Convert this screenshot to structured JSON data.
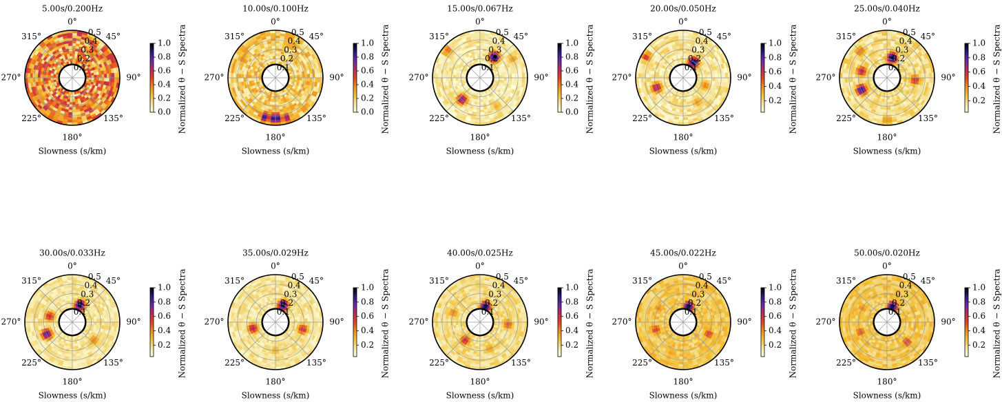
{
  "figure": {
    "xlabel": "Slowness (s/km)",
    "colorbar_label": "Normalized θ − S Spectra"
  },
  "chart_data": [
    {
      "type": "heatmap",
      "title": "5.00s/0.200Hz",
      "cbar_ticks": [
        "0.0",
        "0.2",
        "0.4",
        "0.6",
        "0.8",
        "1.0"
      ],
      "blobs": [
        {
          "az": 60,
          "s": 0.45,
          "v": 0.6
        },
        {
          "az": 330,
          "s": 0.4,
          "v": 0.45
        },
        {
          "az": 280,
          "s": 0.3,
          "v": 0.5
        },
        {
          "az": 150,
          "s": 0.35,
          "v": 0.45
        },
        {
          "az": 200,
          "s": 0.45,
          "v": 0.4
        }
      ],
      "bg": 0.35,
      "noise": 0.25
    },
    {
      "type": "heatmap",
      "title": "10.00s/0.100Hz",
      "cbar_ticks": [
        "0.0",
        "0.2",
        "0.4",
        "0.6",
        "0.8",
        "1.0"
      ],
      "blobs": [
        {
          "az": 180,
          "s": 0.43,
          "v": 1.0
        },
        {
          "az": 195,
          "s": 0.43,
          "v": 0.85
        },
        {
          "az": 165,
          "s": 0.44,
          "v": 0.7
        },
        {
          "az": 30,
          "s": 0.4,
          "v": 0.35
        },
        {
          "az": 300,
          "s": 0.4,
          "v": 0.4
        },
        {
          "az": 100,
          "s": 0.35,
          "v": 0.35
        }
      ],
      "bg": 0.2,
      "noise": 0.15
    },
    {
      "type": "heatmap",
      "title": "15.00s/0.067Hz",
      "cbar_ticks": [
        "0.0",
        "0.2",
        "0.4",
        "0.6",
        "0.8",
        "1.0"
      ],
      "blobs": [
        {
          "az": 35,
          "s": 0.27,
          "v": 1.0
        },
        {
          "az": 220,
          "s": 0.3,
          "v": 0.75
        },
        {
          "az": 310,
          "s": 0.45,
          "v": 0.45
        },
        {
          "az": 60,
          "s": 0.4,
          "v": 0.35
        },
        {
          "az": 150,
          "s": 0.35,
          "v": 0.3
        }
      ],
      "bg": 0.1,
      "noise": 0.1
    },
    {
      "type": "heatmap",
      "title": "20.00s/0.050Hz",
      "cbar_ticks": [
        "0.2",
        "0.4",
        "0.6",
        "0.8",
        "1.0"
      ],
      "blobs": [
        {
          "az": 35,
          "s": 0.2,
          "v": 1.0
        },
        {
          "az": 250,
          "s": 0.3,
          "v": 0.7
        },
        {
          "az": 300,
          "s": 0.45,
          "v": 0.55
        },
        {
          "az": 110,
          "s": 0.25,
          "v": 0.4
        },
        {
          "az": 150,
          "s": 0.3,
          "v": 0.35
        }
      ],
      "bg": 0.12,
      "noise": 0.1
    },
    {
      "type": "heatmap",
      "title": "25.00s/0.040Hz",
      "cbar_ticks": [
        "0.2",
        "0.4",
        "0.6",
        "0.8",
        "1.0"
      ],
      "blobs": [
        {
          "az": 15,
          "s": 0.22,
          "v": 1.0
        },
        {
          "az": 245,
          "s": 0.3,
          "v": 0.9
        },
        {
          "az": 285,
          "s": 0.28,
          "v": 0.65
        },
        {
          "az": 95,
          "s": 0.3,
          "v": 0.6
        },
        {
          "az": 315,
          "s": 0.4,
          "v": 0.45
        },
        {
          "az": 180,
          "s": 0.45,
          "v": 0.4
        }
      ],
      "bg": 0.15,
      "noise": 0.1
    },
    {
      "type": "heatmap",
      "title": "30.00s/0.033Hz",
      "cbar_ticks": [
        "0.2",
        "0.4",
        "0.6",
        "0.8",
        "1.0"
      ],
      "blobs": [
        {
          "az": 25,
          "s": 0.2,
          "v": 1.0
        },
        {
          "az": 245,
          "s": 0.3,
          "v": 0.85
        },
        {
          "az": 285,
          "s": 0.25,
          "v": 0.6
        },
        {
          "az": 130,
          "s": 0.3,
          "v": 0.4
        }
      ],
      "bg": 0.12,
      "noise": 0.08
    },
    {
      "type": "heatmap",
      "title": "35.00s/0.029Hz",
      "cbar_ticks": [
        "0.2",
        "0.4",
        "0.6",
        "0.8",
        "1.0"
      ],
      "blobs": [
        {
          "az": 25,
          "s": 0.2,
          "v": 1.0
        },
        {
          "az": 255,
          "s": 0.25,
          "v": 0.65
        },
        {
          "az": 105,
          "s": 0.3,
          "v": 0.6
        },
        {
          "az": 180,
          "s": 0.3,
          "v": 0.3
        }
      ],
      "bg": 0.12,
      "noise": 0.08
    },
    {
      "type": "heatmap",
      "title": "40.00s/0.025Hz",
      "cbar_ticks": [
        "0.2",
        "0.4",
        "0.6",
        "0.8",
        "1.0"
      ],
      "blobs": [
        {
          "az": 20,
          "s": 0.18,
          "v": 1.0
        },
        {
          "az": 220,
          "s": 0.25,
          "v": 0.6
        },
        {
          "az": 95,
          "s": 0.3,
          "v": 0.5
        },
        {
          "az": 290,
          "s": 0.3,
          "v": 0.4
        },
        {
          "az": 160,
          "s": 0.3,
          "v": 0.35
        }
      ],
      "bg": 0.15,
      "noise": 0.08
    },
    {
      "type": "heatmap",
      "title": "45.00s/0.022Hz",
      "cbar_ticks": [
        "0.2",
        "0.4",
        "0.6",
        "0.8",
        "1.0"
      ],
      "blobs": [
        {
          "az": 20,
          "s": 0.18,
          "v": 1.0
        },
        {
          "az": 255,
          "s": 0.3,
          "v": 0.55
        },
        {
          "az": 115,
          "s": 0.3,
          "v": 0.55
        },
        {
          "az": 300,
          "s": 0.3,
          "v": 0.4
        },
        {
          "az": 200,
          "s": 0.35,
          "v": 0.35
        }
      ],
      "bg": 0.22,
      "noise": 0.08
    },
    {
      "type": "heatmap",
      "title": "50.00s/0.020Hz",
      "cbar_ticks": [
        "0.2",
        "0.4",
        "0.6",
        "0.8",
        "1.0"
      ],
      "blobs": [
        {
          "az": 20,
          "s": 0.18,
          "v": 1.0
        },
        {
          "az": 135,
          "s": 0.3,
          "v": 0.55
        },
        {
          "az": 250,
          "s": 0.3,
          "v": 0.5
        },
        {
          "az": 300,
          "s": 0.3,
          "v": 0.4
        }
      ],
      "bg": 0.22,
      "noise": 0.08
    }
  ],
  "polar": {
    "angle_labels": [
      "0°",
      "45°",
      "90°",
      "135°",
      "180°",
      "225°",
      "270°",
      "315°"
    ],
    "radial_labels": [
      "0.1",
      "0.2",
      "0.3",
      "0.4",
      "0.5"
    ],
    "rmax": 0.5,
    "rmin": 0.07
  },
  "colormap": [
    "#ffffe0",
    "#f5e6a0",
    "#f2c13a",
    "#f08c1c",
    "#e0452a",
    "#b82a5e",
    "#6a29a8",
    "#2a1b7a",
    "#000000"
  ]
}
